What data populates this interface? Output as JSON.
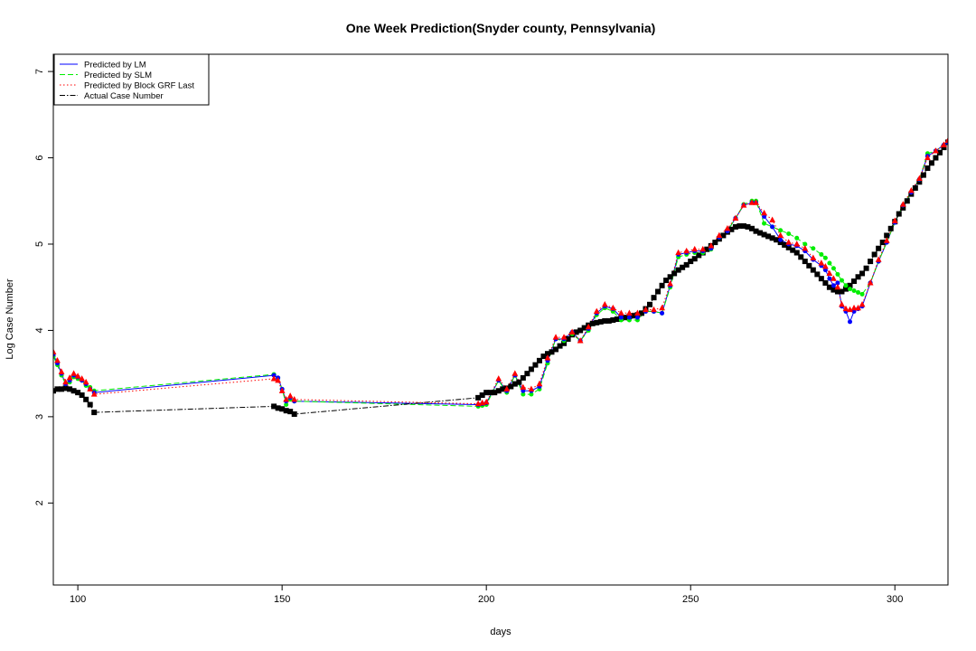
{
  "chart_data": {
    "type": "line",
    "title": "One Week Prediction(Snyder county, Pennsylvania)",
    "xlabel": "days",
    "ylabel": "Log Case Number",
    "xlim": [
      94,
      313
    ],
    "ylim": [
      1.05,
      7.2
    ],
    "xticks": [
      100,
      150,
      200,
      250,
      300
    ],
    "yticks": [
      2,
      3,
      4,
      5,
      6,
      7
    ],
    "grid": false,
    "legend_position": "top-left",
    "series": [
      {
        "name": "Predicted by LM",
        "color": "#0000ff",
        "line_style": "solid",
        "marker": "circle",
        "x": [
          94,
          95,
          96,
          97,
          98,
          99,
          100,
          101,
          102,
          103,
          104,
          148,
          149,
          150,
          151,
          152,
          153,
          198,
          199,
          200,
          203,
          205,
          207,
          209,
          211,
          213,
          215,
          217,
          219,
          221,
          223,
          225,
          227,
          229,
          231,
          233,
          235,
          237,
          239,
          241,
          243,
          245,
          247,
          249,
          251,
          253,
          255,
          257,
          259,
          261,
          263,
          265,
          266,
          268,
          270,
          272,
          274,
          276,
          278,
          280,
          282,
          283,
          284,
          285,
          286,
          287,
          288,
          289,
          290,
          291,
          292,
          294,
          296,
          298,
          300,
          302,
          304,
          306,
          308,
          310,
          312,
          313
        ],
        "y": [
          3.72,
          3.62,
          3.5,
          3.38,
          3.42,
          3.48,
          3.46,
          3.42,
          3.38,
          3.32,
          3.28,
          3.48,
          3.45,
          3.32,
          3.18,
          3.22,
          3.18,
          3.14,
          3.15,
          3.16,
          3.42,
          3.3,
          3.48,
          3.3,
          3.3,
          3.35,
          3.65,
          3.9,
          3.9,
          3.98,
          3.88,
          4.02,
          4.2,
          4.28,
          4.25,
          4.15,
          4.15,
          4.15,
          4.22,
          4.22,
          4.2,
          4.52,
          4.88,
          4.9,
          4.92,
          4.92,
          4.95,
          5.08,
          5.15,
          5.3,
          5.45,
          5.48,
          5.48,
          5.32,
          5.2,
          5.05,
          5.0,
          4.98,
          4.92,
          4.82,
          4.75,
          4.7,
          4.6,
          4.52,
          4.55,
          4.28,
          4.22,
          4.1,
          4.22,
          4.25,
          4.28,
          4.55,
          4.8,
          5.02,
          5.25,
          5.45,
          5.6,
          5.75,
          6.02,
          6.08,
          6.15,
          6.18
        ]
      },
      {
        "name": "Predicted by SLM",
        "color": "#00ee00",
        "line_style": "dashed",
        "marker": "circle",
        "x": [
          94,
          95,
          96,
          97,
          98,
          99,
          100,
          101,
          102,
          103,
          104,
          148,
          149,
          150,
          151,
          152,
          153,
          198,
          199,
          200,
          203,
          205,
          207,
          209,
          211,
          213,
          215,
          217,
          219,
          221,
          223,
          225,
          227,
          229,
          231,
          233,
          235,
          237,
          239,
          241,
          243,
          245,
          247,
          249,
          251,
          253,
          255,
          257,
          259,
          261,
          263,
          265,
          266,
          268,
          270,
          272,
          274,
          276,
          278,
          280,
          282,
          283,
          284,
          285,
          286,
          287,
          288,
          289,
          290,
          291,
          292,
          294,
          296,
          298,
          300,
          302,
          304,
          306,
          308,
          310,
          312,
          313
        ],
        "y": [
          3.7,
          3.6,
          3.48,
          3.38,
          3.4,
          3.46,
          3.44,
          3.42,
          3.36,
          3.34,
          3.3,
          3.49,
          3.45,
          3.32,
          3.14,
          3.2,
          3.18,
          3.12,
          3.13,
          3.14,
          3.42,
          3.28,
          3.48,
          3.26,
          3.26,
          3.32,
          3.62,
          3.9,
          3.88,
          3.96,
          3.88,
          4.0,
          4.18,
          4.26,
          4.22,
          4.12,
          4.12,
          4.12,
          4.22,
          4.22,
          4.2,
          4.5,
          4.85,
          4.88,
          4.9,
          4.9,
          4.94,
          5.08,
          5.15,
          5.3,
          5.46,
          5.5,
          5.5,
          5.24,
          5.2,
          5.16,
          5.12,
          5.07,
          5.0,
          4.95,
          4.88,
          4.84,
          4.78,
          4.72,
          4.65,
          4.58,
          4.52,
          4.48,
          4.46,
          4.44,
          4.42,
          4.55,
          4.8,
          5.02,
          5.25,
          5.45,
          5.6,
          5.75,
          6.05,
          6.08,
          6.15,
          6.18
        ]
      },
      {
        "name": "Predicted by Block GRF Last",
        "color": "#ff0000",
        "line_style": "dotted",
        "marker": "triangle",
        "x": [
          94,
          95,
          96,
          97,
          98,
          99,
          100,
          101,
          102,
          103,
          104,
          148,
          149,
          150,
          151,
          152,
          153,
          198,
          199,
          200,
          203,
          205,
          207,
          209,
          211,
          213,
          215,
          217,
          219,
          221,
          223,
          225,
          227,
          229,
          231,
          233,
          235,
          237,
          239,
          241,
          243,
          245,
          247,
          249,
          251,
          253,
          255,
          257,
          259,
          261,
          263,
          265,
          266,
          268,
          270,
          272,
          274,
          276,
          278,
          280,
          282,
          283,
          284,
          285,
          286,
          287,
          288,
          289,
          290,
          291,
          292,
          294,
          296,
          298,
          300,
          302,
          304,
          306,
          308,
          310,
          312,
          313
        ],
        "y": [
          3.75,
          3.65,
          3.52,
          3.4,
          3.45,
          3.5,
          3.47,
          3.44,
          3.4,
          3.32,
          3.26,
          3.44,
          3.42,
          3.3,
          3.2,
          3.24,
          3.2,
          3.15,
          3.16,
          3.17,
          3.44,
          3.32,
          3.5,
          3.34,
          3.32,
          3.38,
          3.68,
          3.92,
          3.92,
          3.98,
          3.88,
          4.04,
          4.22,
          4.3,
          4.26,
          4.2,
          4.2,
          4.2,
          4.24,
          4.24,
          4.26,
          4.54,
          4.9,
          4.92,
          4.94,
          4.94,
          4.98,
          5.1,
          5.18,
          5.3,
          5.45,
          5.48,
          5.48,
          5.36,
          5.28,
          5.1,
          5.02,
          5.0,
          4.95,
          4.84,
          4.78,
          4.74,
          4.66,
          4.6,
          4.5,
          4.3,
          4.25,
          4.24,
          4.26,
          4.26,
          4.3,
          4.55,
          4.82,
          5.04,
          5.27,
          5.46,
          5.62,
          5.76,
          6.0,
          6.08,
          6.15,
          6.2
        ]
      },
      {
        "name": "Actual Case Number",
        "color": "#000000",
        "line_style": "dashdot",
        "marker": "square",
        "x": [
          94,
          95,
          96,
          97,
          98,
          99,
          100,
          101,
          102,
          103,
          104,
          148,
          149,
          150,
          151,
          152,
          153,
          198,
          199,
          200,
          201,
          202,
          203,
          204,
          205,
          206,
          207,
          208,
          209,
          210,
          211,
          212,
          213,
          214,
          215,
          216,
          217,
          218,
          219,
          220,
          221,
          222,
          223,
          224,
          225,
          226,
          227,
          228,
          229,
          230,
          231,
          232,
          233,
          234,
          235,
          236,
          237,
          238,
          239,
          240,
          241,
          242,
          243,
          244,
          245,
          246,
          247,
          248,
          249,
          250,
          251,
          252,
          253,
          254,
          255,
          256,
          257,
          258,
          259,
          260,
          261,
          262,
          263,
          264,
          265,
          266,
          267,
          268,
          269,
          270,
          271,
          272,
          273,
          274,
          275,
          276,
          277,
          278,
          279,
          280,
          281,
          282,
          283,
          284,
          285,
          286,
          287,
          288,
          289,
          290,
          291,
          292,
          293,
          294,
          295,
          296,
          297,
          298,
          299,
          300,
          301,
          302,
          303,
          304,
          305,
          306,
          307,
          308,
          309,
          310,
          311,
          312,
          313
        ],
        "y": [
          3.3,
          3.32,
          3.32,
          3.33,
          3.32,
          3.3,
          3.28,
          3.25,
          3.2,
          3.14,
          3.05,
          3.12,
          3.1,
          3.09,
          3.07,
          3.06,
          3.03,
          3.22,
          3.25,
          3.28,
          3.28,
          3.28,
          3.3,
          3.32,
          3.33,
          3.35,
          3.38,
          3.4,
          3.45,
          3.5,
          3.55,
          3.6,
          3.65,
          3.7,
          3.73,
          3.75,
          3.78,
          3.82,
          3.85,
          3.9,
          3.95,
          3.98,
          4.0,
          4.03,
          4.06,
          4.08,
          4.09,
          4.1,
          4.11,
          4.11,
          4.12,
          4.13,
          4.14,
          4.15,
          4.16,
          4.17,
          4.18,
          4.2,
          4.25,
          4.3,
          4.38,
          4.45,
          4.52,
          4.58,
          4.62,
          4.66,
          4.7,
          4.73,
          4.76,
          4.8,
          4.83,
          4.87,
          4.9,
          4.94,
          4.98,
          5.02,
          5.06,
          5.1,
          5.14,
          5.17,
          5.2,
          5.21,
          5.21,
          5.2,
          5.18,
          5.15,
          5.13,
          5.11,
          5.09,
          5.07,
          5.05,
          5.02,
          4.99,
          4.96,
          4.93,
          4.9,
          4.85,
          4.8,
          4.75,
          4.7,
          4.65,
          4.6,
          4.55,
          4.5,
          4.47,
          4.45,
          4.45,
          4.48,
          4.52,
          4.57,
          4.62,
          4.66,
          4.72,
          4.8,
          4.88,
          4.95,
          5.02,
          5.1,
          5.18,
          5.26,
          5.35,
          5.42,
          5.5,
          5.58,
          5.65,
          5.72,
          5.8,
          5.88,
          5.94,
          6.0,
          6.06,
          6.12,
          6.18
        ]
      }
    ]
  }
}
